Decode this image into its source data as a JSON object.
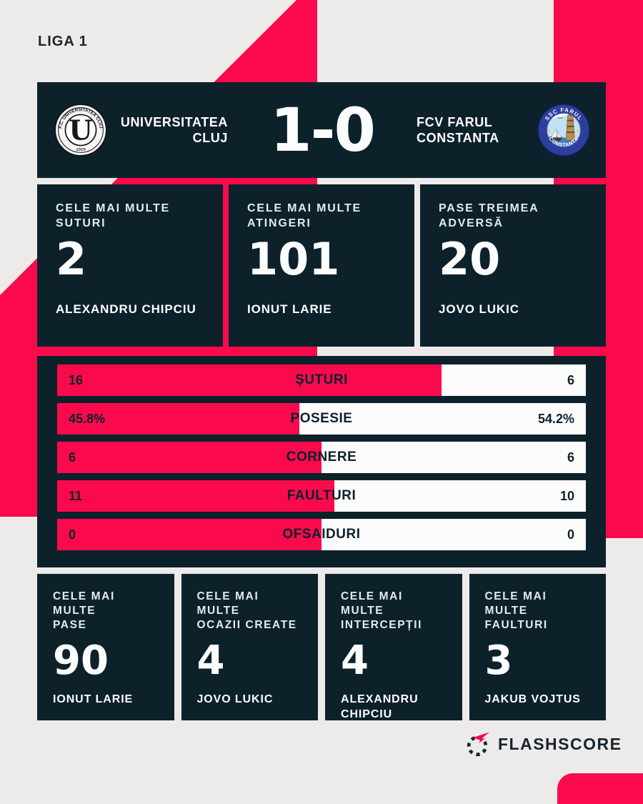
{
  "league_label": "LIGA 1",
  "colors": {
    "accent_pink": "#fa0a4c",
    "panel_navy": "#0d212b",
    "background_gray": "#edebea",
    "bar_white": "#fcfcfc",
    "text_white": "#ffffff"
  },
  "scoreboard": {
    "home": {
      "name_line1": "UNIVERSITATEA",
      "name_line2": "CLUJ",
      "logo": {
        "ring_text": "F.C. UNIVERSITATEA CLUJ",
        "letter": "U",
        "year": "1919"
      }
    },
    "score": {
      "home": "1",
      "separator": "-",
      "away": "0"
    },
    "away": {
      "name_line1": "FCV FARUL",
      "name_line2": "CONSTANTA",
      "logo": {
        "ring_top": "SSC FARUL",
        "ring_bottom": "CONSTANTA"
      }
    }
  },
  "top_stats": [
    {
      "label_line1": "CELE MAI MULTE",
      "label_line2": "SUTURI",
      "value": "2",
      "player": "ALEXANDRU CHIPCIU"
    },
    {
      "label_line1": "CELE MAI MULTE",
      "label_line2": "ATINGERI",
      "value": "101",
      "player": "IONUT LARIE"
    },
    {
      "label_line1": "PASE TREIMEA",
      "label_line2": "ADVERSĂ",
      "value": "20",
      "player": "JOVO LUKIC"
    }
  ],
  "match_stats": [
    {
      "label": "ȘUTURI",
      "home": "16",
      "away": "6",
      "home_pct": 72.7
    },
    {
      "label": "POSESIE",
      "home": "45.8%",
      "away": "54.2%",
      "home_pct": 45.8
    },
    {
      "label": "CORNERE",
      "home": "6",
      "away": "6",
      "home_pct": 50
    },
    {
      "label": "FAULTURI",
      "home": "11",
      "away": "10",
      "home_pct": 52.4
    },
    {
      "label": "OFSAIDURI",
      "home": "0",
      "away": "0",
      "home_pct": 50
    }
  ],
  "bottom_stats": [
    {
      "label_line1": "CELE MAI MULTE",
      "label_line2": "PASE",
      "value": "90",
      "player": "IONUT LARIE"
    },
    {
      "label_line1": "CELE MAI MULTE",
      "label_line2": "OCAZII CREATE",
      "value": "4",
      "player": "JOVO LUKIC"
    },
    {
      "label_line1": "CELE MAI MULTE",
      "label_line2": "INTERCEPȚII",
      "value": "4",
      "player": "ALEXANDRU CHIPCIU"
    },
    {
      "label_line1": "CELE MAI MULTE",
      "label_line2": "FAULTURI",
      "value": "3",
      "player": "JAKUB VOJTUS"
    }
  ],
  "footer": {
    "brand": "FLASHSCORE"
  },
  "chart_data": {
    "type": "bar",
    "title": "Universitatea Cluj 1-0 FCV Farul Constanta — match stats",
    "categories": [
      "ȘUTURI",
      "POSESIE",
      "CORNERE",
      "FAULTURI",
      "OFSAIDURI"
    ],
    "series": [
      {
        "name": "Universitatea Cluj",
        "values": [
          16,
          45.8,
          6,
          11,
          0
        ]
      },
      {
        "name": "FCV Farul Constanta",
        "values": [
          6,
          54.2,
          6,
          10,
          0
        ]
      }
    ],
    "value_labels": {
      "home": [
        "16",
        "45.8%",
        "6",
        "11",
        "0"
      ],
      "away": [
        "6",
        "54.2%",
        "6",
        "10",
        "0"
      ]
    },
    "layout": "horizontal paired comparison bars, home share in pink from left, away share in white to right, category label centered"
  }
}
